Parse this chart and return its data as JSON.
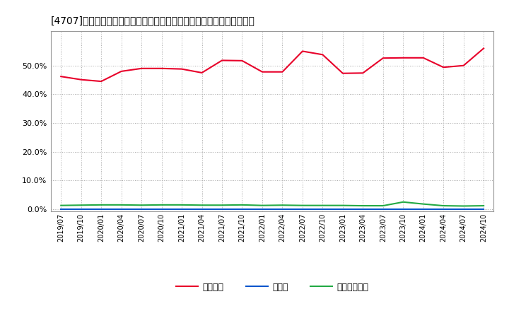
{
  "title": "[4707]　自己資本、のれん、繰延税金資産の総資産に対する比率の推移",
  "x_labels": [
    "2019/07",
    "2019/10",
    "2020/01",
    "2020/04",
    "2020/07",
    "2020/10",
    "2021/01",
    "2021/04",
    "2021/07",
    "2021/10",
    "2022/01",
    "2022/04",
    "2022/07",
    "2022/10",
    "2023/01",
    "2023/04",
    "2023/07",
    "2023/10",
    "2024/01",
    "2024/04",
    "2024/07",
    "2024/10"
  ],
  "jikoshihon": [
    0.462,
    0.451,
    0.445,
    0.48,
    0.49,
    0.49,
    0.488,
    0.475,
    0.518,
    0.517,
    0.478,
    0.478,
    0.55,
    0.538,
    0.473,
    0.474,
    0.526,
    0.527,
    0.527,
    0.494,
    0.5,
    0.56
  ],
  "noren": [
    0.0,
    0.0,
    0.0,
    0.0,
    0.0,
    0.0,
    0.0,
    0.0,
    0.0,
    0.0,
    0.0,
    0.0,
    0.0,
    0.0,
    0.0,
    0.0,
    0.0,
    0.0,
    0.0,
    0.0,
    0.0,
    0.0
  ],
  "kurinobe": [
    0.013,
    0.014,
    0.015,
    0.015,
    0.014,
    0.015,
    0.015,
    0.014,
    0.014,
    0.015,
    0.013,
    0.014,
    0.013,
    0.013,
    0.013,
    0.012,
    0.012,
    0.025,
    0.018,
    0.012,
    0.011,
    0.012
  ],
  "jikoshihon_color": "#e8002a",
  "noren_color": "#0055cc",
  "kurinobe_color": "#22aa44",
  "background_color": "#ffffff",
  "plot_bg_color": "#ffffff",
  "grid_color": "#aaaaaa",
  "ylim": [
    -0.008,
    0.62
  ],
  "yticks": [
    0.0,
    0.1,
    0.2,
    0.3,
    0.4,
    0.5
  ],
  "legend_labels": [
    "自己資本",
    "のれん",
    "繰延税金資産"
  ]
}
